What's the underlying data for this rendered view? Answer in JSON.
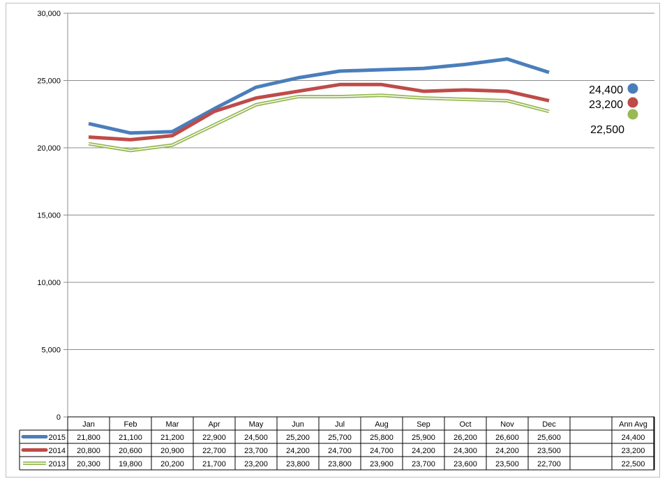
{
  "chart_data": {
    "type": "line",
    "ylim": [
      0,
      30000
    ],
    "yticks": [
      "0",
      "5,000",
      "10,000",
      "15,000",
      "20,000",
      "25,000",
      "30,000"
    ],
    "ytick_values": [
      0,
      5000,
      10000,
      15000,
      20000,
      25000,
      30000
    ],
    "categories": [
      "Jan",
      "Feb",
      "Mar",
      "Apr",
      "May",
      "Jun",
      "Jul",
      "Aug",
      "Sep",
      "Oct",
      "Nov",
      "Dec"
    ],
    "avg_header": "Ann Avg",
    "grid": true,
    "series": [
      {
        "name": "2015",
        "color": "#4a7ebb",
        "style": "solid",
        "values": [
          21800,
          21100,
          21200,
          22900,
          24500,
          25200,
          25700,
          25800,
          25900,
          26200,
          26600,
          25600
        ],
        "labels": [
          "21,800",
          "21,100",
          "21,200",
          "22,900",
          "24,500",
          "25,200",
          "25,700",
          "25,800",
          "25,900",
          "26,200",
          "26,600",
          "25,600"
        ],
        "avg": 24400,
        "avg_label": "24,400"
      },
      {
        "name": "2014",
        "color": "#be4b48",
        "style": "solid",
        "values": [
          20800,
          20600,
          20900,
          22700,
          23700,
          24200,
          24700,
          24700,
          24200,
          24300,
          24200,
          23500
        ],
        "labels": [
          "20,800",
          "20,600",
          "20,900",
          "22,700",
          "23,700",
          "24,200",
          "24,700",
          "24,700",
          "24,200",
          "24,300",
          "24,200",
          "23,500"
        ],
        "avg": 23200,
        "avg_label": "23,200"
      },
      {
        "name": "2013",
        "color": "#98b954",
        "style": "double",
        "values": [
          20300,
          19800,
          20200,
          21700,
          23200,
          23800,
          23800,
          23900,
          23700,
          23600,
          23500,
          22700
        ],
        "labels": [
          "20,300",
          "19,800",
          "20,200",
          "21,700",
          "23,200",
          "23,800",
          "23,800",
          "23,900",
          "23,700",
          "23,600",
          "23,500",
          "22,700"
        ],
        "avg": 22500,
        "avg_label": "22,500"
      }
    ]
  }
}
